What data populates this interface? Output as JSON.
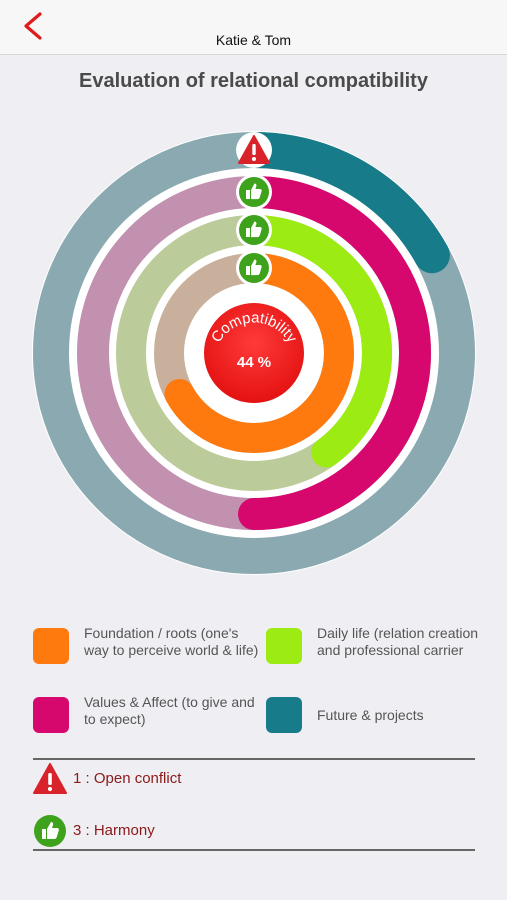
{
  "navbar": {
    "back_icon": "chevron-left-icon",
    "title": "Katie & Tom"
  },
  "page_title": "Evaluation of relational compatibility",
  "center": {
    "label": "Compatibility",
    "value": "44 %"
  },
  "rings": [
    {
      "name": "Future & projects",
      "color": "#177b8a",
      "track_color": "#8aa9b0",
      "fraction": 0.17,
      "status": "open-conflict"
    },
    {
      "name": "Values & Affect",
      "color": "#d6086e",
      "track_color": "#c291b0",
      "fraction": 0.5,
      "status": "harmony"
    },
    {
      "name": "Daily life",
      "color": "#9ceb12",
      "track_color": "#bccb9a",
      "fraction": 0.4,
      "status": "harmony"
    },
    {
      "name": "Foundation / roots",
      "color": "#ff7a0e",
      "track_color": "#c8b09c",
      "fraction": 0.67,
      "status": "harmony"
    }
  ],
  "legend": [
    {
      "label": "Foundation / roots (one's way to perceive world & life)",
      "color": "#ff7a0e"
    },
    {
      "label": "Daily life (relation creation and professional carrier",
      "color": "#9ceb12"
    },
    {
      "label": "Values & Affect (to give and to expect)",
      "color": "#d6086e"
    },
    {
      "label": "Future & projects",
      "color": "#177b8a"
    }
  ],
  "summary": {
    "conflict": {
      "icon": "warning-icon",
      "text": "1 : Open conflict"
    },
    "harmony": {
      "icon": "thumbs-up-icon",
      "text": "3 : Harmony"
    }
  },
  "colors": {
    "accent_red": "#e01b1b",
    "warning_red": "#d9232a",
    "harmony_green": "#3ea21c",
    "status_text": "#8b1a1a"
  }
}
